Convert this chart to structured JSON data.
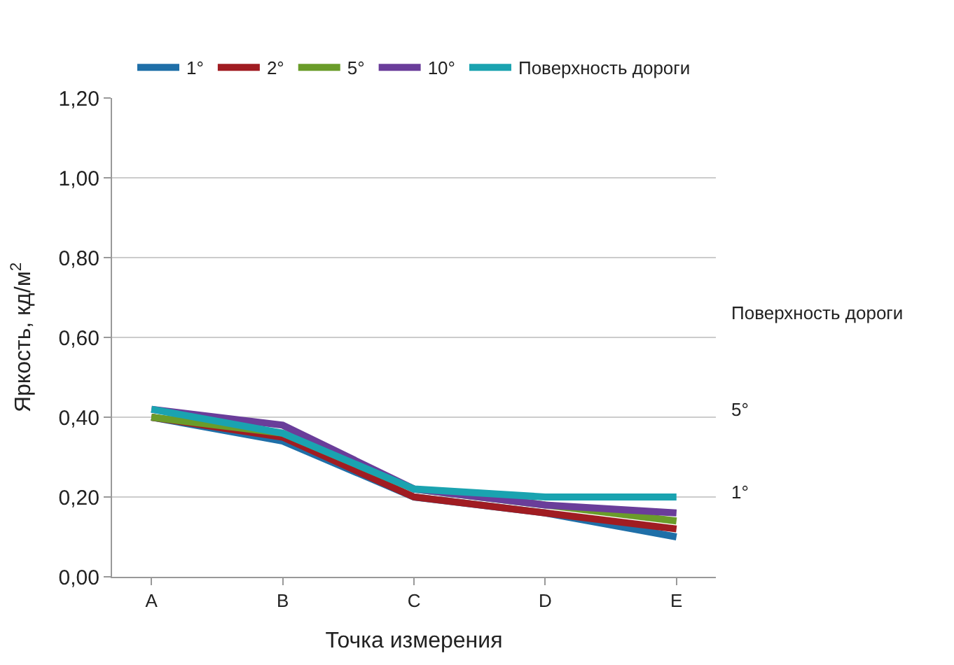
{
  "chart_data": {
    "type": "line",
    "xlabel": "Точка измерения",
    "ylabel": "Яркость, кд/м$^{2}$",
    "categories": [
      "A",
      "B",
      "C",
      "D",
      "E"
    ],
    "series": [
      {
        "name": "1°",
        "color": "#1f6fa8",
        "values": [
          0.4,
          0.34,
          0.2,
          0.16,
          0.1
        ]
      },
      {
        "name": "2°",
        "color": "#a01c22",
        "values": [
          0.4,
          0.35,
          0.2,
          0.16,
          0.12
        ]
      },
      {
        "name": "5°",
        "color": "#6a9c2a",
        "values": [
          0.4,
          0.36,
          0.22,
          0.18,
          0.14
        ]
      },
      {
        "name": "10°",
        "color": "#6a3d9a",
        "values": [
          0.42,
          0.38,
          0.22,
          0.18,
          0.16
        ]
      },
      {
        "name": "Поверхность дороги",
        "color": "#1aa3b0",
        "values": [
          0.42,
          0.36,
          0.22,
          0.2,
          0.2
        ]
      }
    ],
    "ylim": [
      0,
      1.2
    ],
    "yticks": [
      {
        "value": 0,
        "label": "0,00"
      },
      {
        "value": 0.2,
        "label": "0,20"
      },
      {
        "value": 0.4,
        "label": "0,40"
      },
      {
        "value": 0.6,
        "label": "0,60"
      },
      {
        "value": 0.8,
        "label": "0,80"
      },
      {
        "value": 1.0,
        "label": "1,00"
      },
      {
        "value": 1.2,
        "label": "1,20"
      }
    ],
    "annotations": [
      "1°",
      "5°",
      "Поверхность дороги"
    ],
    "grid": "y",
    "legend": "top",
    "marker": "none",
    "line_style": "solid"
  }
}
